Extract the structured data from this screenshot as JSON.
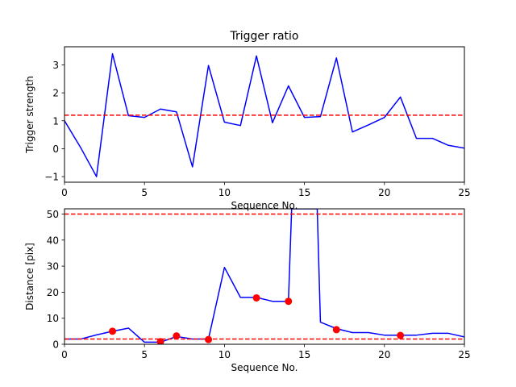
{
  "chart_data": [
    {
      "type": "line",
      "title": "Trigger ratio",
      "xlabel": "Sequence No.",
      "ylabel": "Trigger strength",
      "xlim": [
        0,
        25
      ],
      "ylim": [
        -1.2,
        3.65
      ],
      "xticks": [
        0,
        5,
        10,
        15,
        20,
        25
      ],
      "yticks": [
        -1,
        0,
        1,
        2,
        3
      ],
      "ytick_labels": [
        "−1",
        "0",
        "1",
        "2",
        "3"
      ],
      "grid": false,
      "series": [
        {
          "color": "#0000ff",
          "x": [
            0,
            1,
            2,
            3,
            4,
            5,
            6,
            7,
            8,
            9,
            10,
            11,
            12,
            13,
            14,
            15,
            16,
            17,
            18,
            19,
            20,
            21,
            22,
            23,
            24,
            25
          ],
          "y": [
            1.0,
            0.05,
            -1.0,
            3.4,
            1.18,
            1.12,
            1.42,
            1.32,
            -0.65,
            2.98,
            0.95,
            0.83,
            3.32,
            0.93,
            2.25,
            1.12,
            1.15,
            3.25,
            0.6,
            0.85,
            1.12,
            1.85,
            0.37,
            0.37,
            0.12,
            0.02
          ]
        }
      ],
      "hlines": [
        {
          "y": 1.2,
          "color": "#ff0000",
          "style": "dashed"
        }
      ]
    },
    {
      "type": "line",
      "title": "",
      "xlabel": "Sequence No.",
      "ylabel": "Distance [pix]",
      "xlim": [
        0,
        25
      ],
      "ylim": [
        0,
        52
      ],
      "xticks": [
        0,
        5,
        10,
        15,
        20,
        25
      ],
      "yticks": [
        0,
        10,
        20,
        30,
        40,
        50
      ],
      "grid": false,
      "series": [
        {
          "color": "#0000ff",
          "x": [
            0,
            1,
            2,
            3,
            4,
            5,
            6,
            7,
            8,
            9,
            10,
            11,
            12,
            13,
            14,
            14.2,
            15,
            15.8,
            16,
            17,
            18,
            19,
            20,
            21,
            22,
            23,
            24,
            25
          ],
          "y": [
            2.0,
            2.0,
            3.6,
            5.0,
            6.2,
            0.8,
            0.8,
            3.0,
            2.0,
            2.0,
            29.5,
            18.0,
            18.0,
            16.5,
            16.5,
            52,
            52,
            52,
            8.5,
            6.0,
            4.5,
            4.5,
            3.5,
            3.5,
            3.5,
            4.2,
            4.2,
            2.8
          ]
        }
      ],
      "markers": {
        "color": "#ff0000",
        "x": [
          3,
          6,
          7,
          9,
          12,
          14,
          17,
          21
        ],
        "y": [
          5.0,
          1.0,
          3.2,
          1.8,
          17.8,
          16.5,
          5.6,
          3.4
        ]
      },
      "hlines": [
        {
          "y": 50,
          "color": "#ff0000",
          "style": "dashed"
        },
        {
          "y": 2,
          "color": "#ff0000",
          "style": "dashed"
        }
      ]
    }
  ]
}
